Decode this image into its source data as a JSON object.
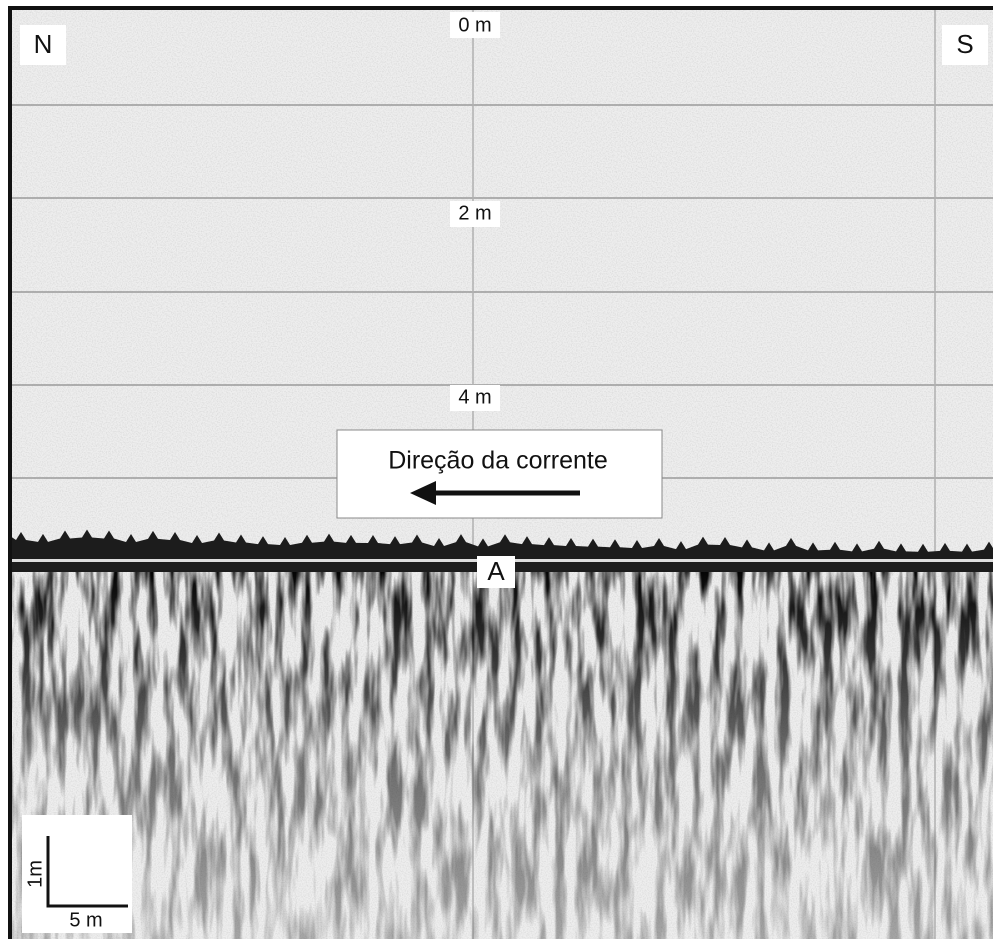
{
  "labels": {
    "north": "N",
    "south": "S",
    "depth_top": "0 m",
    "depth_middle": "2 m",
    "depth_bottom": "4 m",
    "current": "Direção da corrente",
    "feature": "A"
  },
  "scale_bar": {
    "vertical": "1m",
    "horizontal": "5 m"
  }
}
